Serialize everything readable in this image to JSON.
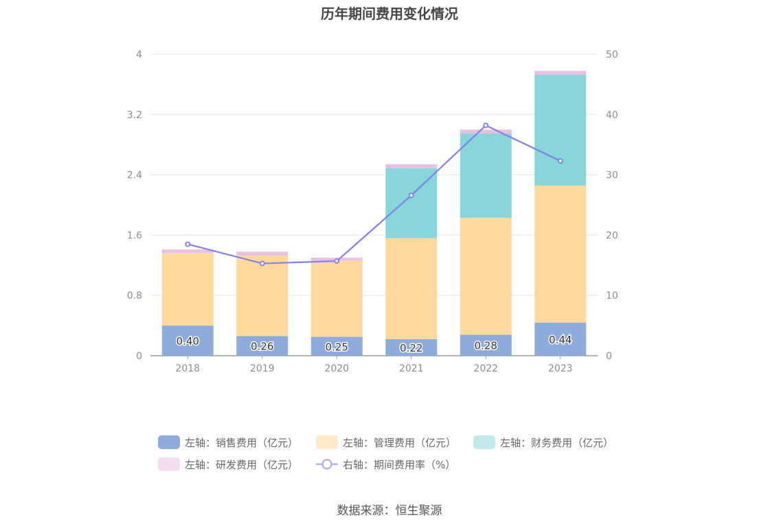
{
  "chart_data": {
    "type": "bar",
    "title": "历年期间费用变化情况",
    "stacked": true,
    "categories": [
      "2018",
      "2019",
      "2020",
      "2021",
      "2022",
      "2023"
    ],
    "series": [
      {
        "name": "左轴：销售费用（亿元）",
        "axis": "left",
        "values": [
          0.4,
          0.26,
          0.25,
          0.22,
          0.28,
          0.44
        ],
        "color": "#8eacdb",
        "labels": [
          "0.40",
          "0.26",
          "0.25",
          "0.22",
          "0.28",
          "0.44"
        ]
      },
      {
        "name": "左轴：管理费用（亿元）",
        "axis": "left",
        "values": [
          0.96,
          1.07,
          1.01,
          1.34,
          1.55,
          1.82
        ],
        "color": "#ffd99c"
      },
      {
        "name": "左轴：财务费用（亿元）",
        "axis": "left",
        "values": [
          0.0,
          0.0,
          0.0,
          0.93,
          1.12,
          1.47
        ],
        "color": "#88d5da"
      },
      {
        "name": "左轴：研发费用（亿元）",
        "axis": "left",
        "values": [
          0.05,
          0.05,
          0.04,
          0.05,
          0.05,
          0.05
        ],
        "color": "#eac0e2"
      },
      {
        "name": "右轴：期间费用率（%）",
        "axis": "right",
        "type": "line",
        "values": [
          18.5,
          15.3,
          15.7,
          26.6,
          38.2,
          32.3
        ],
        "color": "#8080ee"
      }
    ],
    "left_axis": {
      "min": 0,
      "max": 4,
      "ticks": [
        "0",
        "0.8",
        "1.6",
        "2.4",
        "3.2",
        "4"
      ]
    },
    "right_axis": {
      "min": 0,
      "max": 50,
      "ticks": [
        "0",
        "10",
        "20",
        "30",
        "40",
        "50"
      ]
    },
    "grid": true,
    "legend_position": "bottom"
  },
  "source_text": "数据来源：恒生聚源"
}
